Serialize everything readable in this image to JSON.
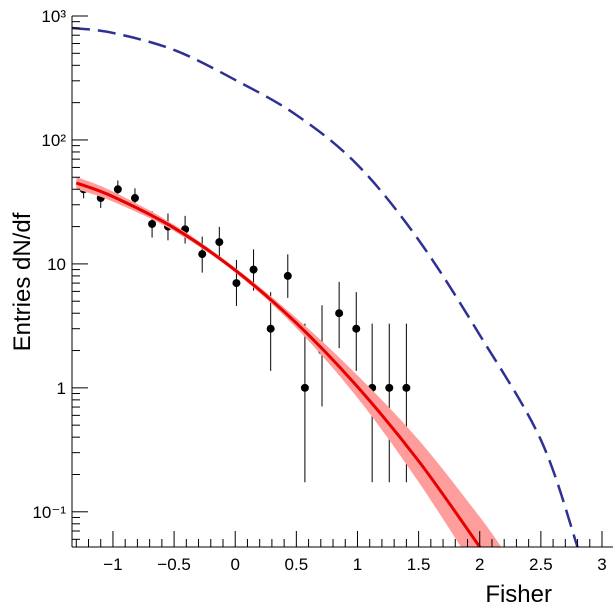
{
  "chart_data": {
    "type": "line",
    "x_label": "Fisher",
    "y_label": "Entries dN/df",
    "log_y": true,
    "xlim": [
      -1.335,
      3.09
    ],
    "ylim": [
      0.052,
      1000
    ],
    "xticks": [
      {
        "value": -1,
        "label": "−1"
      },
      {
        "value": -0.5,
        "label": "−0.5"
      },
      0,
      0.5,
      1,
      1.5,
      2,
      2.5,
      3
    ],
    "yticks": [
      {
        "value": 0.1,
        "label": "10⁻¹"
      },
      1,
      10,
      {
        "value": 100,
        "label": "10²"
      },
      {
        "value": 1000,
        "label": "10³"
      }
    ],
    "series": [
      {
        "style": "points",
        "color": "#000000",
        "x": [
          -1.24,
          -1.1,
          -0.96,
          -0.82,
          -0.68,
          -0.55,
          -0.41,
          -0.27,
          -0.13,
          0.01,
          0.15,
          0.29,
          0.43,
          0.57,
          0.71,
          0.85,
          0.99,
          1.12,
          1.26,
          1.4
        ],
        "values": [
          40,
          34,
          40,
          34,
          21,
          20,
          19,
          12,
          15,
          7,
          9,
          3,
          8,
          1,
          2,
          4,
          3,
          1,
          1,
          1
        ],
        "lower": [
          33.8,
          28.3,
          33.8,
          28.3,
          16.3,
          15.5,
          14.6,
          8.5,
          11.1,
          4.58,
          6.08,
          1.37,
          5.32,
          0.173,
          0.708,
          2.09,
          1.37,
          0.173,
          0.173,
          0.173
        ],
        "upper": [
          47.1,
          40.7,
          47.1,
          40.7,
          26.6,
          25.5,
          24.4,
          16.6,
          19.9,
          10.77,
          13.1,
          5.92,
          11.94,
          3.3,
          4.64,
          7.16,
          5.92,
          3.3,
          3.3,
          3.3
        ]
      },
      {
        "style": "band-line",
        "color": "#e60000",
        "band_color": "#ff9c9c",
        "x": [
          -1.3,
          -1,
          -0.5,
          0,
          0.5,
          1,
          1.5,
          2,
          2.2
        ],
        "values": [
          45,
          34.9,
          19.5,
          8.9,
          3.33,
          1.02,
          0.257,
          0.052,
          0.0264
        ],
        "lower": [
          40.1,
          31.8,
          18.4,
          8.5,
          3.04,
          0.83,
          0.174,
          0.03,
          0.0145
        ],
        "upper": [
          50.5,
          38.3,
          20.7,
          9.3,
          3.66,
          1.26,
          0.38,
          0.091,
          0.048
        ]
      },
      {
        "style": "dashed",
        "color": "#2e3192",
        "x": [
          -1.335,
          -1,
          -0.5,
          0,
          0.5,
          1,
          1.5,
          2,
          2.5,
          2.8
        ],
        "values": [
          800,
          730,
          532,
          305,
          159,
          63,
          15.6,
          2.67,
          0.38,
          0.052
        ]
      }
    ]
  }
}
